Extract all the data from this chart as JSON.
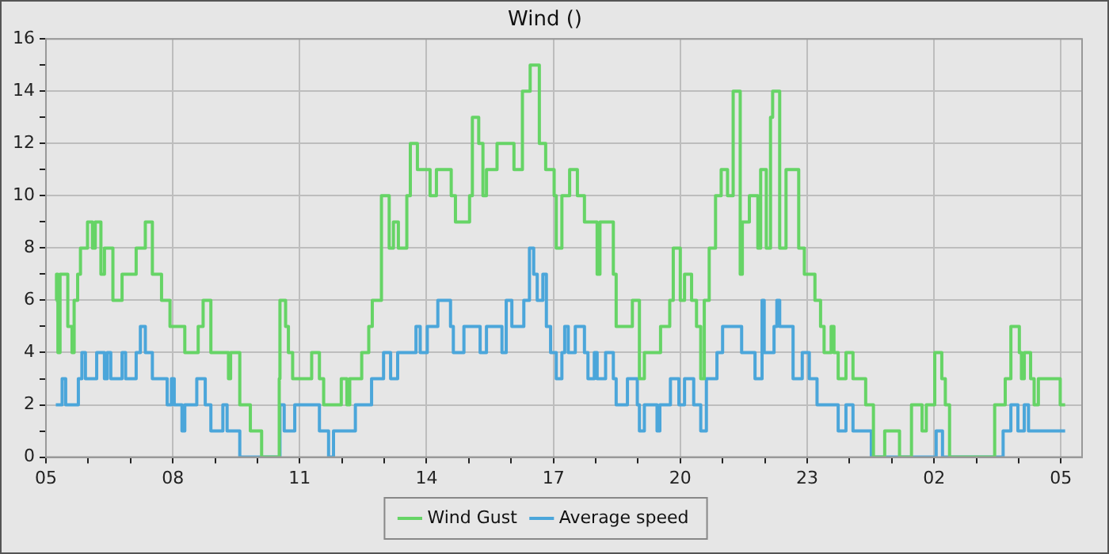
{
  "chart_data": {
    "type": "step",
    "title": "Wind ()",
    "xlim": [
      "--01-01T05:00",
      "--01-02T05:30"
    ],
    "xticks": [
      {
        "value": "--01-01T05:00",
        "label": "05"
      },
      {
        "value": "--01-01T06:00",
        "label": null
      },
      {
        "value": "--01-01T07:00",
        "label": null
      },
      {
        "value": "--01-01T08:00",
        "label": "08"
      },
      {
        "value": "--01-01T09:00",
        "label": null
      },
      {
        "value": "--01-01T10:00",
        "label": null
      },
      {
        "value": "--01-01T11:00",
        "label": "11"
      },
      {
        "value": "--01-01T12:00",
        "label": null
      },
      {
        "value": "--01-01T13:00",
        "label": null
      },
      {
        "value": "--01-01T14:00",
        "label": "14"
      },
      {
        "value": "--01-01T15:00",
        "label": null
      },
      {
        "value": "--01-01T16:00",
        "label": null
      },
      {
        "value": "--01-01T17:00",
        "label": "17"
      },
      {
        "value": "--01-01T18:00",
        "label": null
      },
      {
        "value": "--01-01T19:00",
        "label": null
      },
      {
        "value": "--01-01T20:00",
        "label": "20"
      },
      {
        "value": "--01-01T21:00",
        "label": null
      },
      {
        "value": "--01-01T22:00",
        "label": null
      },
      {
        "value": "--01-01T23:00",
        "label": "23"
      },
      {
        "value": "--01-02T00:00",
        "label": null
      },
      {
        "value": "--01-02T01:00",
        "label": null
      },
      {
        "value": "--01-02T02:00",
        "label": "02"
      },
      {
        "value": "--01-02T03:00",
        "label": null
      },
      {
        "value": "--01-02T04:00",
        "label": null
      },
      {
        "value": "--01-02T05:00",
        "label": "05"
      }
    ],
    "ylim": [
      0,
      16
    ],
    "yticks": [
      0,
      {
        "value": 1,
        "label": null
      },
      2,
      {
        "value": 3,
        "label": null
      },
      4,
      {
        "value": 5,
        "label": null
      },
      6,
      {
        "value": 7,
        "label": null
      },
      8,
      {
        "value": 9,
        "label": null
      },
      10,
      {
        "value": 11,
        "label": null
      },
      12,
      {
        "value": 13,
        "label": null
      },
      14,
      {
        "value": 15,
        "label": null
      },
      16
    ],
    "grid": true,
    "legend": "bottom",
    "marker": "none",
    "line_style": "solid",
    "series": [
      {
        "name": "Wind Gust",
        "color": "#66d466",
        "x": [
          "--01-01T05:14",
          "--01-01T05:15",
          "--01-01T05:17",
          "--01-01T05:20",
          "--01-01T05:31",
          "--01-01T05:37",
          "--01-01T05:40",
          "--01-01T05:45",
          "--01-01T05:49",
          "--01-01T05:59",
          "--01-01T06:06",
          "--01-01T06:10",
          "--01-01T06:18",
          "--01-01T06:23",
          "--01-01T06:35",
          "--01-01T06:48",
          "--01-01T07:08",
          "--01-01T07:21",
          "--01-01T07:31",
          "--01-01T07:44",
          "--01-01T07:56",
          "--01-01T08:17",
          "--01-01T08:36",
          "--01-01T08:43",
          "--01-01T08:54",
          "--01-01T09:19",
          "--01-01T09:22",
          "--01-01T09:35",
          "--01-01T09:50",
          "--01-01T10:06",
          "--01-01T10:31",
          "--01-01T10:32",
          "--01-01T10:40",
          "--01-01T10:44",
          "--01-01T10:50",
          "--01-01T11:17",
          "--01-01T11:28",
          "--01-01T11:34",
          "--01-01T11:59",
          "--01-01T12:07",
          "--01-01T12:11",
          "--01-01T12:28",
          "--01-01T12:38",
          "--01-01T12:43",
          "--01-01T12:56",
          "--01-01T13:07",
          "--01-01T13:13",
          "--01-01T13:20",
          "--01-01T13:32",
          "--01-01T13:37",
          "--01-01T13:47",
          "--01-01T14:05",
          "--01-01T14:14",
          "--01-01T14:35",
          "--01-01T14:41",
          "--01-01T15:01",
          "--01-01T15:05",
          "--01-01T15:14",
          "--01-01T15:20",
          "--01-01T15:25",
          "--01-01T15:40",
          "--01-01T16:04",
          "--01-01T16:16",
          "--01-01T16:27",
          "--01-01T16:40",
          "--01-01T16:49",
          "--01-01T17:01",
          "--01-01T17:04",
          "--01-01T17:12",
          "--01-01T17:23",
          "--01-01T17:34",
          "--01-01T17:44",
          "--01-01T18:02",
          "--01-01T18:06",
          "--01-01T18:25",
          "--01-01T18:29",
          "--01-01T18:52",
          "--01-01T19:02",
          "--01-01T19:09",
          "--01-01T19:32",
          "--01-01T19:45",
          "--01-01T19:50",
          "--01-01T20:00",
          "--01-01T20:06",
          "--01-01T20:16",
          "--01-01T20:23",
          "--01-01T20:29",
          "--01-01T20:34",
          "--01-01T20:41",
          "--01-01T20:50",
          "--01-01T20:58",
          "--01-01T21:07",
          "--01-01T21:15",
          "--01-01T21:25",
          "--01-01T21:28",
          "--01-01T21:38",
          "--01-01T21:50",
          "--01-01T21:54",
          "--01-01T22:02",
          "--01-01T22:08",
          "--01-01T22:11",
          "--01-01T22:21",
          "--01-01T22:30",
          "--01-01T22:48",
          "--01-01T22:56",
          "--01-01T23:11",
          "--01-01T23:19",
          "--01-01T23:24",
          "--01-01T23:34",
          "--01-01T23:38",
          "--01-01T23:44",
          "--01-01T23:55",
          "--01-02T00:05",
          "--01-02T00:23",
          "--01-02T00:34",
          "--01-02T00:50",
          "--01-02T01:11",
          "--01-02T01:28",
          "--01-02T01:43",
          "--01-02T01:49",
          "--01-02T02:01",
          "--01-02T02:11",
          "--01-02T02:16",
          "--01-02T02:22",
          "--01-02T03:26",
          "--01-02T03:41",
          "--01-02T03:49",
          "--01-02T04:01",
          "--01-02T04:04",
          "--01-02T04:08",
          "--01-02T04:17",
          "--01-02T04:22",
          "--01-02T04:28",
          "--01-02T04:59",
          "--01-02T05:06"
        ],
        "values": [
          6,
          7,
          4,
          7,
          5,
          4,
          6,
          7,
          8,
          9,
          8,
          9,
          7,
          8,
          6,
          7,
          8,
          9,
          7,
          6,
          5,
          4,
          5,
          6,
          4,
          3,
          4,
          2,
          1,
          0,
          3,
          6,
          5,
          4,
          3,
          4,
          3,
          2,
          3,
          2,
          3,
          4,
          5,
          6,
          10,
          8,
          9,
          8,
          10,
          12,
          11,
          10,
          11,
          10,
          9,
          10,
          13,
          12,
          10,
          11,
          12,
          11,
          14,
          15,
          12,
          11,
          10,
          8,
          10,
          11,
          10,
          9,
          7,
          9,
          7,
          5,
          6,
          3,
          4,
          5,
          6,
          8,
          6,
          7,
          6,
          5,
          3,
          6,
          8,
          10,
          11,
          10,
          14,
          7,
          9,
          10,
          8,
          11,
          8,
          13,
          14,
          8,
          11,
          8,
          7,
          6,
          5,
          4,
          5,
          4,
          3,
          4,
          3,
          2,
          0,
          1,
          0,
          2,
          1,
          2,
          4,
          3,
          2,
          0,
          2,
          3,
          5,
          4,
          3,
          4,
          3,
          2,
          3,
          2,
          2
        ]
      },
      {
        "name": "Average speed",
        "color": "#4ba6da",
        "x": [
          "--01-01T05:14",
          "--01-01T05:23",
          "--01-01T05:28",
          "--01-01T05:46",
          "--01-01T05:51",
          "--01-01T05:56",
          "--01-01T06:12",
          "--01-01T06:23",
          "--01-01T06:27",
          "--01-01T06:32",
          "--01-01T06:48",
          "--01-01T06:53",
          "--01-01T07:08",
          "--01-01T07:14",
          "--01-01T07:21",
          "--01-01T07:31",
          "--01-01T07:52",
          "--01-01T07:58",
          "--01-01T08:02",
          "--01-01T08:13",
          "--01-01T08:17",
          "--01-01T08:34",
          "--01-01T08:46",
          "--01-01T08:54",
          "--01-01T09:11",
          "--01-01T09:17",
          "--01-01T09:35",
          "--01-01T10:32",
          "--01-01T10:38",
          "--01-01T10:53",
          "--01-01T11:28",
          "--01-01T11:41",
          "--01-01T11:48",
          "--01-01T12:19",
          "--01-01T12:42",
          "--01-01T12:59",
          "--01-01T13:09",
          "--01-01T13:19",
          "--01-01T13:45",
          "--01-01T13:51",
          "--01-01T14:01",
          "--01-01T14:16",
          "--01-01T14:34",
          "--01-01T14:38",
          "--01-01T14:53",
          "--01-01T15:16",
          "--01-01T15:25",
          "--01-01T15:47",
          "--01-01T15:53",
          "--01-01T16:01",
          "--01-01T16:18",
          "--01-01T16:26",
          "--01-01T16:32",
          "--01-01T16:37",
          "--01-01T16:45",
          "--01-01T16:50",
          "--01-01T16:56",
          "--01-01T17:04",
          "--01-01T17:12",
          "--01-01T17:16",
          "--01-01T17:21",
          "--01-01T17:31",
          "--01-01T17:44",
          "--01-01T17:49",
          "--01-01T17:58",
          "--01-01T18:02",
          "--01-01T18:14",
          "--01-01T18:25",
          "--01-01T18:29",
          "--01-01T18:45",
          "--01-01T18:59",
          "--01-01T19:02",
          "--01-01T19:09",
          "--01-01T19:27",
          "--01-01T19:31",
          "--01-01T19:46",
          "--01-01T19:58",
          "--01-01T20:06",
          "--01-01T20:19",
          "--01-01T20:29",
          "--01-01T20:37",
          "--01-01T20:52",
          "--01-01T21:00",
          "--01-01T21:27",
          "--01-01T21:46",
          "--01-01T21:56",
          "--01-01T21:59",
          "--01-01T22:13",
          "--01-01T22:17",
          "--01-01T22:21",
          "--01-01T22:40",
          "--01-01T22:53",
          "--01-01T23:03",
          "--01-01T23:14",
          "--01-01T23:44",
          "--01-01T23:55",
          "--01-02T00:05",
          "--01-02T00:31",
          "--01-02T02:03",
          "--01-02T02:12",
          "--01-02T03:38",
          "--01-02T03:49",
          "--01-02T03:59",
          "--01-02T04:08",
          "--01-02T04:14",
          "--01-02T05:06"
        ],
        "values": [
          2,
          3,
          2,
          3,
          4,
          3,
          4,
          3,
          4,
          3,
          4,
          3,
          4,
          5,
          4,
          3,
          2,
          3,
          2,
          1,
          2,
          3,
          2,
          1,
          2,
          1,
          0,
          2,
          1,
          2,
          1,
          0,
          1,
          2,
          3,
          4,
          3,
          4,
          5,
          4,
          5,
          6,
          5,
          4,
          5,
          4,
          5,
          4,
          6,
          5,
          6,
          8,
          7,
          6,
          7,
          5,
          4,
          3,
          4,
          5,
          4,
          5,
          4,
          3,
          4,
          3,
          4,
          3,
          2,
          3,
          2,
          1,
          2,
          1,
          2,
          3,
          2,
          3,
          2,
          1,
          3,
          4,
          5,
          4,
          3,
          6,
          4,
          5,
          6,
          5,
          3,
          4,
          3,
          2,
          1,
          2,
          1,
          0,
          1,
          0,
          1,
          2,
          1,
          2,
          1,
          1
        ]
      }
    ]
  }
}
